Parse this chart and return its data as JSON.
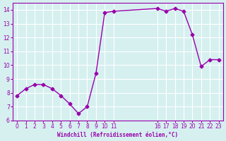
{
  "x": [
    0,
    1,
    2,
    3,
    4,
    5,
    6,
    7,
    8,
    9,
    10,
    11,
    16,
    17,
    18,
    19,
    20,
    21,
    22,
    23
  ],
  "y": [
    7.8,
    8.3,
    8.6,
    8.6,
    8.3,
    7.8,
    7.2,
    6.5,
    7.0,
    9.4,
    13.8,
    13.9,
    14.1,
    13.9,
    14.1,
    13.9,
    12.2,
    9.9,
    10.4,
    10.4
  ],
  "line_color": "#9900aa",
  "marker": "D",
  "marker_size": 2.5,
  "bg_color": "#d6f0f0",
  "grid_color": "#ffffff",
  "xlabel": "Windchill (Refroidissement éolien,°C)",
  "xlabel_color": "#9900aa",
  "tick_color": "#9900aa",
  "xlim": [
    -0.5,
    23.5
  ],
  "ylim": [
    6,
    14.5
  ],
  "yticks": [
    6,
    7,
    8,
    9,
    10,
    11,
    12,
    13,
    14
  ],
  "xticks": [
    0,
    1,
    2,
    3,
    4,
    5,
    6,
    7,
    8,
    9,
    10,
    11,
    16,
    17,
    18,
    19,
    20,
    21,
    22,
    23
  ],
  "xtick_labels": [
    "0",
    "1",
    "2",
    "3",
    "4",
    "5",
    "6",
    "7",
    "8",
    "9",
    "10",
    "11",
    "16",
    "17",
    "18",
    "19",
    "20",
    "21",
    "22",
    "23"
  ]
}
